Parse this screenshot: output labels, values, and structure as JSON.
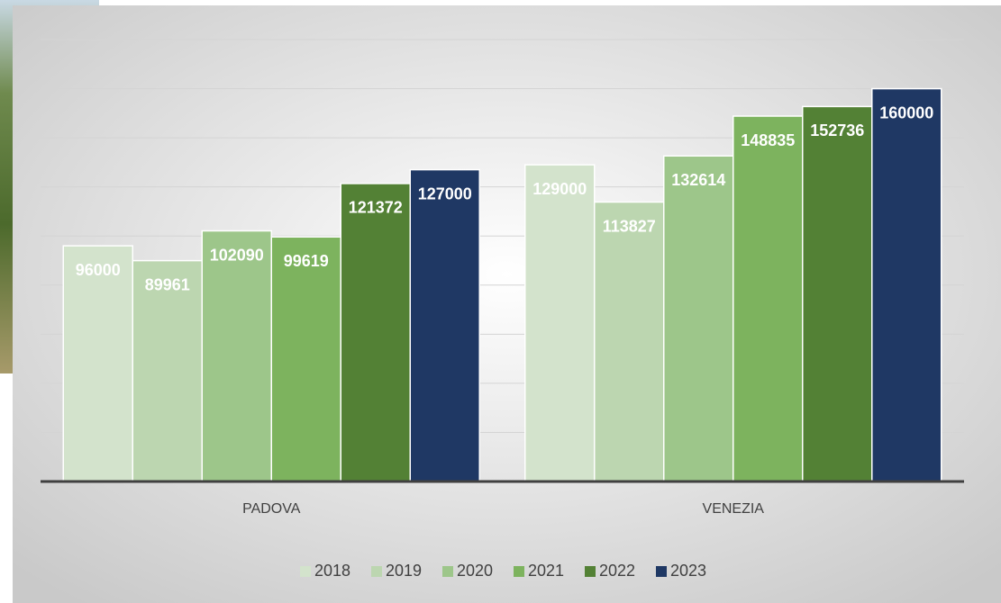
{
  "chart_data": {
    "type": "bar",
    "categories": [
      "PADOVA",
      "VENEZIA"
    ],
    "series": [
      {
        "name": "2018",
        "color": "#d3e3cc",
        "values": [
          96000,
          129000
        ]
      },
      {
        "name": "2019",
        "color": "#bcd6b0",
        "values": [
          89961,
          113827
        ]
      },
      {
        "name": "2020",
        "color": "#9dc68a",
        "values": [
          102090,
          132614
        ]
      },
      {
        "name": "2021",
        "color": "#7db35e",
        "values": [
          99619,
          148835
        ]
      },
      {
        "name": "2022",
        "color": "#538135",
        "values": [
          121372,
          152736
        ]
      },
      {
        "name": "2023",
        "color": "#1f3864",
        "values": [
          127000,
          160000
        ]
      }
    ],
    "ylim": [
      0,
      180000
    ],
    "yticks": [
      20000,
      40000,
      60000,
      80000,
      100000,
      120000,
      140000,
      160000,
      180000
    ],
    "grid": true,
    "legend": "bottom"
  }
}
